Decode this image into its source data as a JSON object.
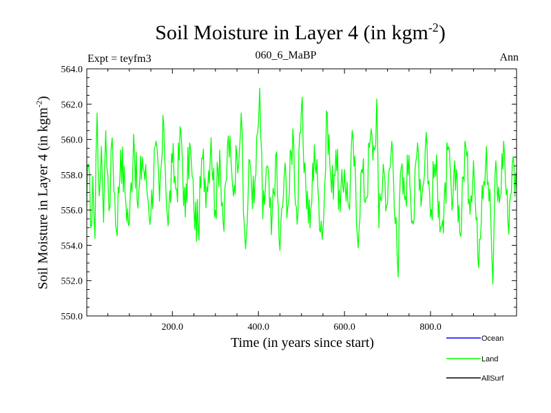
{
  "title": {
    "main": "Soil Moisture in Layer 4 (in kgm",
    "sup": "-2",
    "close": ")"
  },
  "header": {
    "expt": "Expt = teyfm3",
    "subtitle": "060_6_MaBP",
    "season": "Ann"
  },
  "chart_data": {
    "type": "line",
    "title": "Soil Moisture in Layer 4 (in kgm-2)",
    "xlabel": "Time (in years since start)",
    "ylabel": {
      "main": "Soil Moisture in Layer 4 (in kgm",
      "sup": "-2",
      "close": ")"
    },
    "xlim": [
      1,
      1000
    ],
    "ylim": [
      550.0,
      564.0
    ],
    "x_ticks": [
      200.0,
      400.0,
      600.0,
      800.0
    ],
    "x_tick_labels": [
      "200.0",
      "400.0",
      "600.0",
      "800.0"
    ],
    "y_ticks": [
      550.0,
      552.0,
      554.0,
      556.0,
      558.0,
      560.0,
      562.0,
      564.0
    ],
    "y_tick_labels": [
      "550.0",
      "552.0",
      "554.0",
      "556.0",
      "558.0",
      "560.0",
      "562.0",
      "564.0"
    ],
    "legend_position": "bottom-right",
    "legend": [
      {
        "name": "Ocean",
        "color": "#0000ff"
      },
      {
        "name": "Land",
        "color": "#00ff00"
      },
      {
        "name": "AllSurf",
        "color": "#000000"
      }
    ],
    "series": [
      {
        "name": "Land",
        "color": "#00ff00",
        "x": [
          1,
          5,
          10,
          15,
          20,
          25,
          30,
          35,
          40,
          45,
          50,
          55,
          60,
          70,
          80,
          90,
          100,
          110,
          120,
          130,
          140,
          150,
          160,
          170,
          180,
          190,
          200,
          210,
          220,
          230,
          240,
          250,
          260,
          270,
          280,
          290,
          300,
          310,
          320,
          330,
          340,
          350,
          360,
          365,
          370,
          380,
          390,
          400,
          403,
          410,
          420,
          430,
          440,
          450,
          460,
          470,
          480,
          490,
          500,
          510,
          520,
          530,
          540,
          550,
          560,
          570,
          580,
          590,
          600,
          610,
          620,
          630,
          640,
          650,
          660,
          670,
          675,
          680,
          690,
          700,
          710,
          720,
          725,
          730,
          740,
          750,
          760,
          770,
          780,
          790,
          800,
          810,
          820,
          830,
          840,
          850,
          860,
          870,
          880,
          890,
          900,
          910,
          920,
          930,
          940,
          945,
          950,
          960,
          970,
          980,
          990,
          1000
        ],
        "y": [
          556.2,
          558.6,
          555.0,
          557.9,
          554.4,
          561.5,
          556.8,
          559.6,
          555.3,
          560.5,
          558.0,
          556.2,
          560.1,
          554.8,
          559.4,
          557.0,
          555.2,
          560.3,
          556.1,
          559.0,
          557.4,
          555.8,
          559.6,
          556.5,
          560.8,
          555.1,
          558.7,
          557.2,
          560.4,
          555.6,
          559.8,
          556.1,
          554.9,
          558.9,
          557.3,
          560.1,
          556.0,
          559.4,
          554.8,
          560.2,
          557.3,
          559.0,
          561.5,
          555.9,
          553.8,
          558.8,
          556.4,
          560.9,
          562.9,
          555.5,
          558.5,
          554.6,
          559.1,
          553.7,
          558.0,
          556.4,
          560.6,
          555.2,
          561.8,
          557.5,
          555.0,
          559.7,
          556.6,
          554.9,
          561.5,
          557.0,
          559.4,
          555.9,
          558.3,
          556.2,
          560.1,
          554.5,
          558.3,
          556.7,
          560.0,
          559.4,
          562.3,
          555.0,
          558.6,
          556.3,
          559.9,
          555.6,
          552.2,
          558.1,
          556.6,
          559.1,
          555.2,
          559.8,
          556.8,
          560.4,
          555.6,
          558.6,
          556.5,
          554.7,
          559.4,
          556.0,
          558.3,
          554.5,
          559.9,
          556.6,
          558.8,
          553.3,
          557.4,
          559.6,
          555.6,
          551.8,
          558.1,
          556.4,
          559.9,
          555.3,
          558.6,
          557.3
        ]
      }
    ]
  }
}
